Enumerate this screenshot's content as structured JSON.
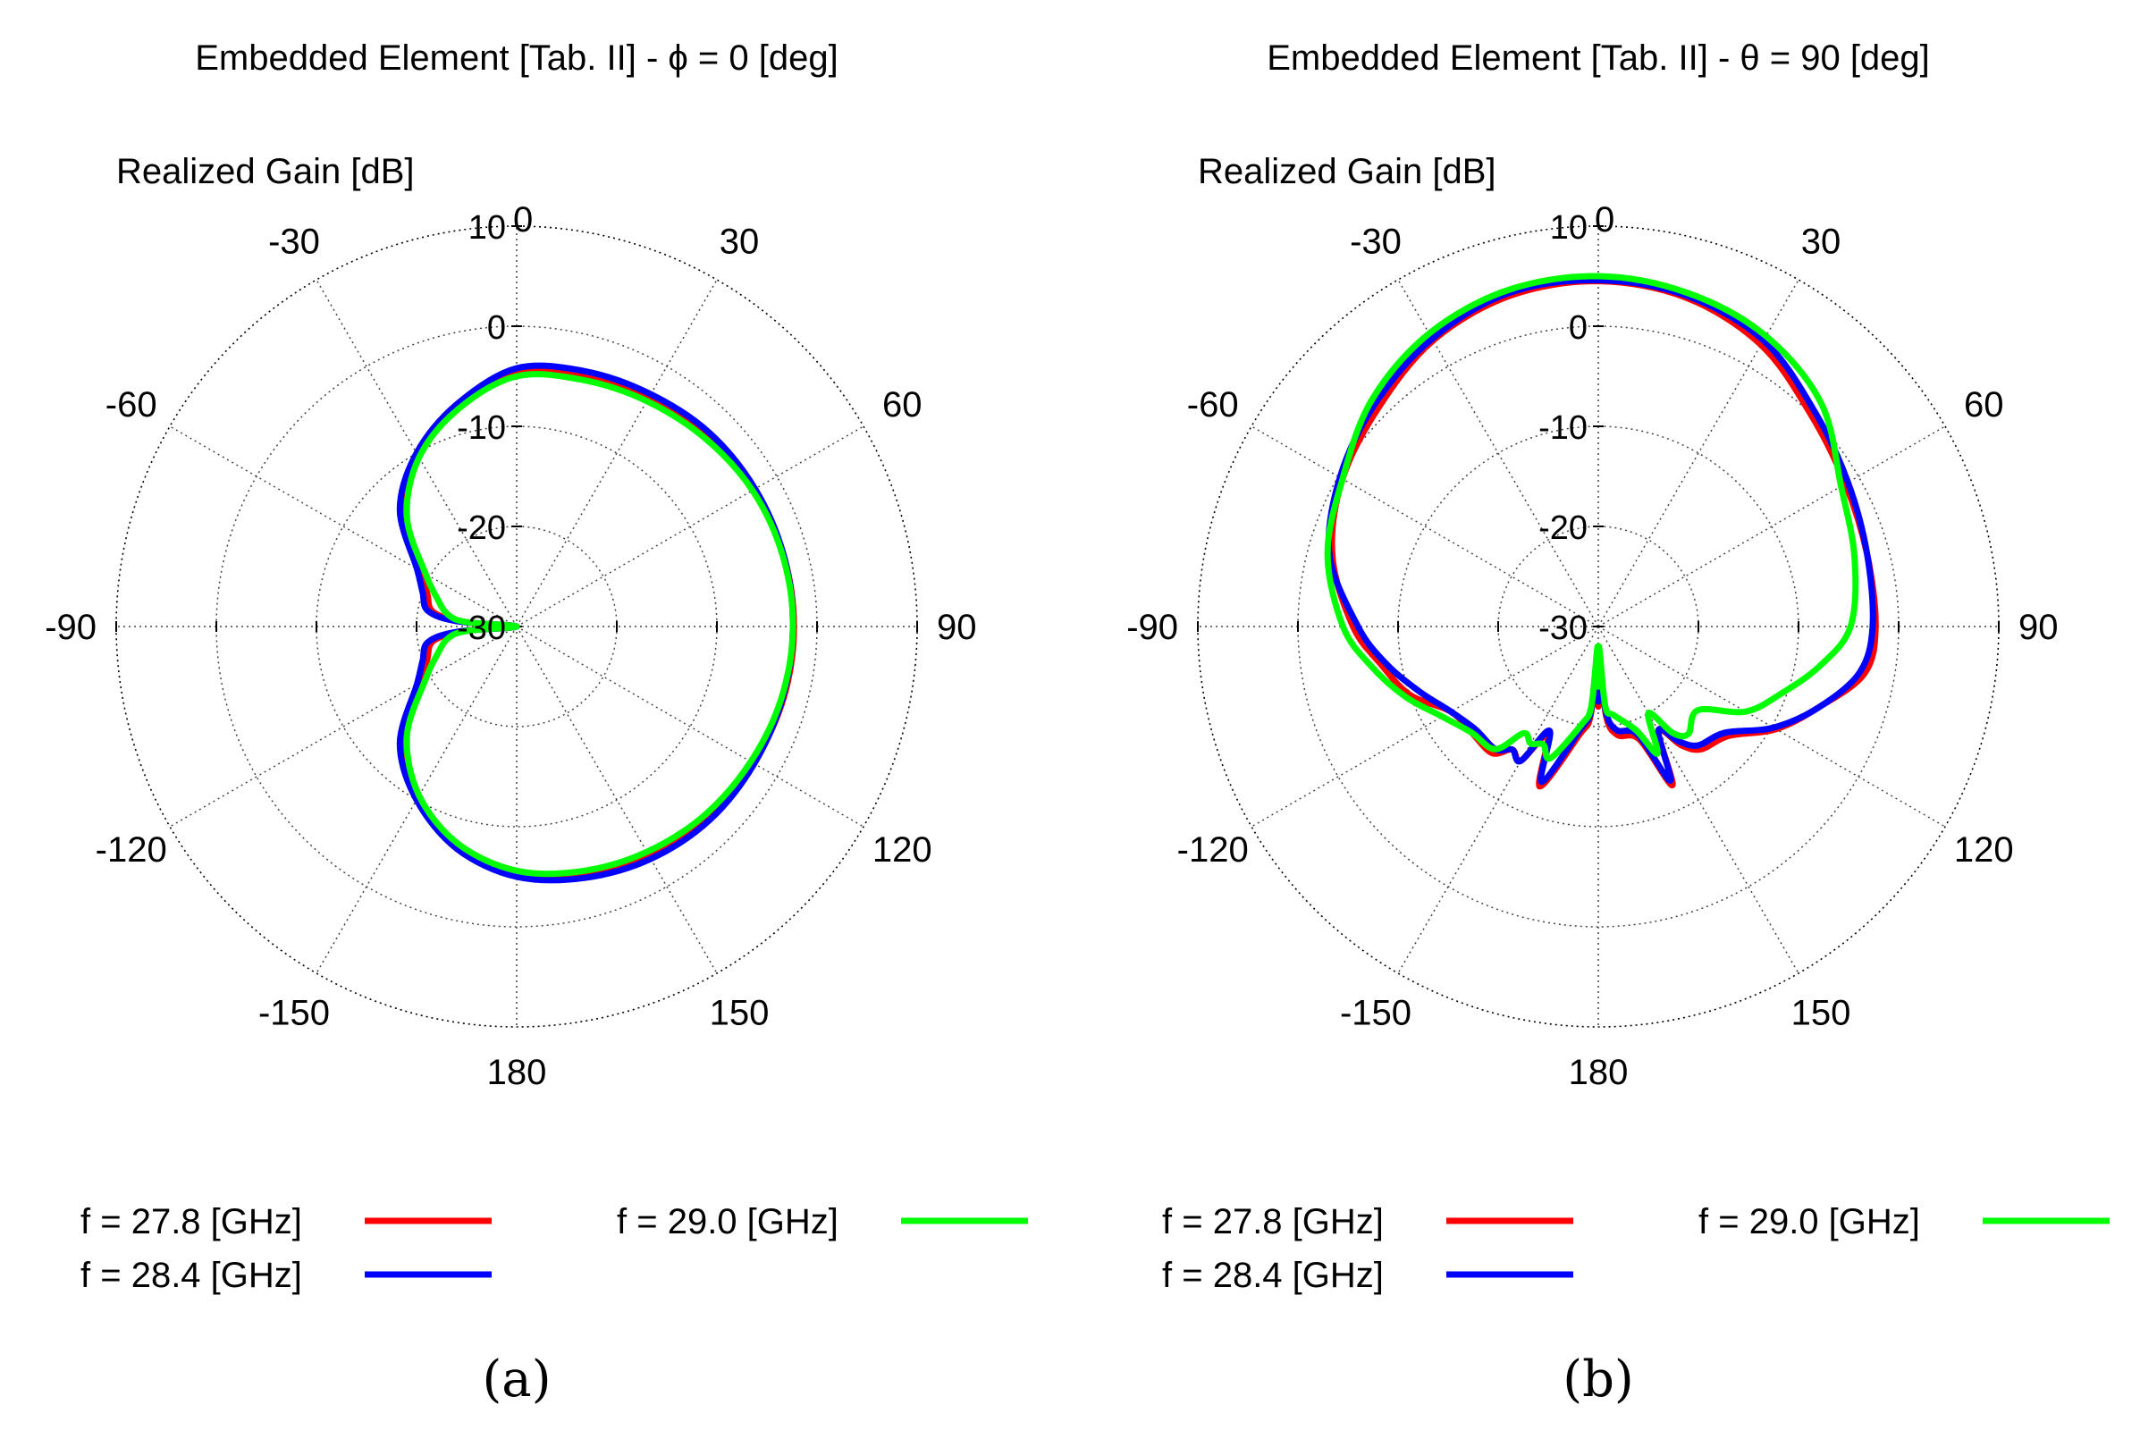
{
  "panels": [
    {
      "panel_label": "(a)",
      "chart_data": {
        "type": "polar-line",
        "title": "Embedded Element [Tab. II] - ϕ = 0 [deg]",
        "radial_label": "Realized Gain [dB]",
        "radial_range": [
          -30,
          10
        ],
        "radial_ticks": [
          10,
          0,
          -10,
          -20,
          -30
        ],
        "angle_ticks": [
          0,
          30,
          60,
          90,
          120,
          150,
          180,
          -150,
          -120,
          -90,
          -60,
          -30
        ],
        "angle_unit": "deg",
        "angle_zero": "top",
        "angle_direction": "clockwise",
        "series": [
          {
            "name": "f = 27.8 [GHz]",
            "color": "#ff0000",
            "theta": [
              0,
              15,
              30,
              45,
              60,
              75,
              90,
              105,
              120,
              135,
              150,
              165,
              180,
              -165,
              -150,
              -135,
              -120,
              -110,
              -100,
              -95,
              -90,
              -85,
              -80,
              -70,
              -60,
              -45,
              -30,
              -15
            ],
            "gain": [
              -4.5,
              -4.0,
              -3.6,
              -3.0,
              -2.6,
              -2.4,
              -2.3,
              -2.4,
              -2.7,
              -3.0,
              -3.5,
              -4.2,
              -5.2,
              -7.0,
              -10.2,
              -14.0,
              -19.0,
              -20.5,
              -21.5,
              -24.5,
              -30.0,
              -24.5,
              -21.5,
              -20.5,
              -19.0,
              -14.0,
              -10.2,
              -7.0
            ]
          },
          {
            "name": "f = 28.4 [GHz]",
            "color": "#0000ff",
            "theta": [
              0,
              15,
              30,
              45,
              60,
              75,
              90,
              105,
              120,
              135,
              150,
              165,
              180,
              -165,
              -150,
              -135,
              -120,
              -110,
              -100,
              -95,
              -90,
              -85,
              -80,
              -70,
              -60,
              -45,
              -30,
              -15
            ],
            "gain": [
              -4.2,
              -3.6,
              -3.2,
              -2.7,
              -2.5,
              -2.4,
              -2.4,
              -2.5,
              -2.6,
              -2.7,
              -3.2,
              -4.0,
              -5.0,
              -7.0,
              -10.0,
              -13.5,
              -18.5,
              -20.0,
              -21.0,
              -24.0,
              -30.0,
              -24.0,
              -21.0,
              -20.0,
              -18.5,
              -13.5,
              -10.0,
              -7.0
            ]
          },
          {
            "name": "f = 29.0 [GHz]",
            "color": "#00ff00",
            "theta": [
              0,
              15,
              30,
              45,
              60,
              75,
              90,
              105,
              120,
              135,
              150,
              165,
              180,
              -165,
              -150,
              -135,
              -120,
              -110,
              -100,
              -95,
              -90,
              -85,
              -80,
              -70,
              -60,
              -45,
              -30,
              -15
            ],
            "gain": [
              -5.0,
              -4.5,
              -4.0,
              -3.4,
              -2.8,
              -2.5,
              -2.4,
              -2.6,
              -3.0,
              -3.4,
              -4.0,
              -4.7,
              -5.6,
              -7.5,
              -10.5,
              -14.5,
              -19.5,
              -21.5,
              -23.0,
              -25.0,
              -30.0,
              -25.0,
              -23.0,
              -21.5,
              -19.5,
              -14.5,
              -10.5,
              -7.5
            ]
          }
        ]
      },
      "legend": [
        {
          "label": "f = 27.8 [GHz]",
          "color": "#ff0000"
        },
        {
          "label": "f = 28.4 [GHz]",
          "color": "#0000ff"
        },
        {
          "label": "f = 29.0 [GHz]",
          "color": "#00ff00"
        }
      ]
    },
    {
      "panel_label": "(b)",
      "chart_data": {
        "type": "polar-line",
        "title": "Embedded Element [Tab. II] - θ = 90 [deg]",
        "radial_label": "Realized Gain [dB]",
        "radial_range": [
          -30,
          10
        ],
        "radial_ticks": [
          10,
          0,
          -10,
          -20,
          -30
        ],
        "angle_ticks": [
          0,
          30,
          60,
          90,
          120,
          150,
          180,
          -150,
          -120,
          -90,
          -60,
          -30
        ],
        "angle_unit": "deg",
        "angle_zero": "top",
        "angle_direction": "clockwise",
        "series": [
          {
            "name": "f = 27.8 [GHz]",
            "color": "#ff0000",
            "theta": [
              0,
              15,
              30,
              45,
              60,
              75,
              90,
              100,
              110,
              120,
              130,
              140,
              145,
              150,
              155,
              160,
              170,
              175,
              178,
              180,
              -178,
              -175,
              -170,
              -160,
              -155,
              -150,
              -145,
              -140,
              -130,
              -120,
              -110,
              -100,
              -90,
              -75,
              -60,
              -45,
              -30,
              -15
            ],
            "gain": [
              4.5,
              4.0,
              2.5,
              0.0,
              -1.5,
              -2.2,
              -2.3,
              -3.0,
              -6.5,
              -9.5,
              -13.0,
              -14.0,
              -15.5,
              -18.0,
              -12.5,
              -18.0,
              -19.0,
              -21.0,
              -27.0,
              -22.0,
              -27.0,
              -21.0,
              -19.0,
              -13.0,
              -18.0,
              -14.5,
              -15.0,
              -13.5,
              -13.5,
              -13.0,
              -10.0,
              -8.0,
              -5.5,
              -2.5,
              -0.5,
              1.0,
              3.0,
              4.2
            ]
          },
          {
            "name": "f = 28.4 [GHz]",
            "color": "#0000ff",
            "theta": [
              0,
              15,
              30,
              45,
              60,
              75,
              90,
              100,
              110,
              120,
              130,
              140,
              145,
              150,
              155,
              160,
              170,
              175,
              178,
              180,
              -178,
              -175,
              -170,
              -160,
              -155,
              -150,
              -145,
              -140,
              -130,
              -120,
              -110,
              -100,
              -90,
              -75,
              -60,
              -45,
              -30,
              -15
            ],
            "gain": [
              4.6,
              4.2,
              3.0,
              0.5,
              -1.2,
              -2.2,
              -2.6,
              -3.5,
              -6.5,
              -9.8,
              -13.5,
              -14.5,
              -16.0,
              -18.0,
              -13.0,
              -18.5,
              -19.5,
              -21.5,
              -27.0,
              -22.5,
              -27.0,
              -21.5,
              -19.5,
              -13.5,
              -18.5,
              -14.5,
              -15.0,
              -14.0,
              -14.0,
              -13.0,
              -11.0,
              -8.5,
              -6.0,
              -2.2,
              -0.2,
              1.5,
              3.2,
              4.5
            ]
          },
          {
            "name": "f = 29.0 [GHz]",
            "color": "#00ff00",
            "theta": [
              0,
              15,
              30,
              45,
              60,
              75,
              90,
              100,
              110,
              120,
              130,
              140,
              145,
              150,
              155,
              160,
              170,
              175,
              178,
              180,
              -178,
              -175,
              -170,
              -160,
              -155,
              -150,
              -145,
              -140,
              -130,
              -120,
              -110,
              -100,
              -90,
              -75,
              -60,
              -45,
              -30,
              -15
            ],
            "gain": [
              5.0,
              4.5,
              3.5,
              1.5,
              -2.0,
              -3.5,
              -4.8,
              -7.5,
              -10.5,
              -13.0,
              -17.0,
              -16.0,
              -17.0,
              -20.0,
              -16.0,
              -19.0,
              -21.0,
              -22.0,
              -28.0,
              -24.0,
              -28.0,
              -22.0,
              -20.0,
              -16.0,
              -17.0,
              -16.5,
              -17.0,
              -14.0,
              -13.5,
              -12.0,
              -9.5,
              -7.0,
              -4.5,
              -2.0,
              -0.5,
              2.0,
              3.8,
              4.8
            ]
          }
        ]
      },
      "legend": [
        {
          "label": "f = 27.8 [GHz]",
          "color": "#ff0000"
        },
        {
          "label": "f = 28.4 [GHz]",
          "color": "#0000ff"
        },
        {
          "label": "f = 29.0 [GHz]",
          "color": "#00ff00"
        }
      ]
    }
  ]
}
